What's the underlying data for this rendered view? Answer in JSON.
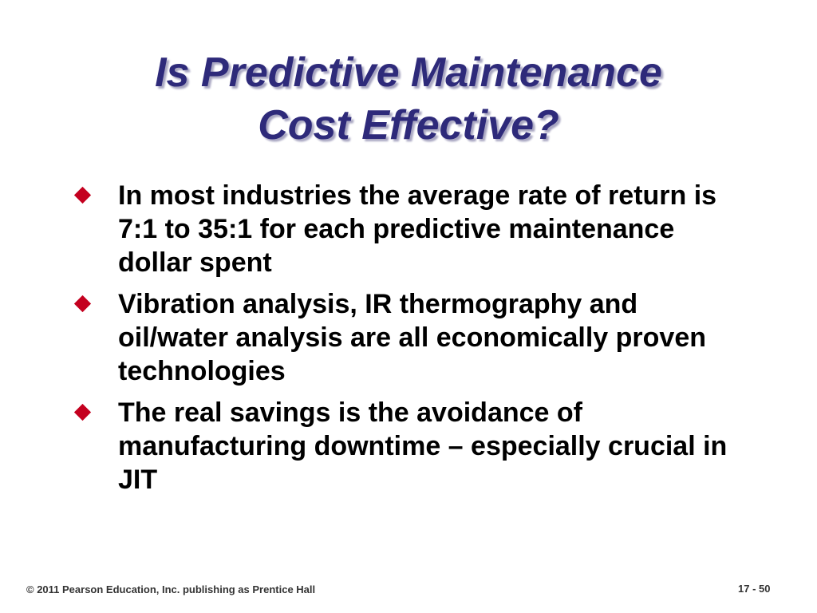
{
  "slide": {
    "title_lines": [
      "Is Predictive Maintenance",
      "Cost Effective?"
    ],
    "bullets": [
      {
        "text": "In most industries the average rate of return is 7:1 to 35:1 for each predictive maintenance dollar spent",
        "icon": "diamond-bullet-icon"
      },
      {
        "text": "Vibration analysis, IR thermography and oil/water analysis are all economically proven technologies",
        "icon": "diamond-bullet-icon"
      },
      {
        "text": "The real savings is the avoidance of manufacturing downtime – especially crucial in JIT",
        "icon": "diamond-bullet-icon"
      }
    ],
    "footer": {
      "copyright": "© 2011 Pearson Education, Inc. publishing as Prentice Hall",
      "page_number": "17 - 50"
    }
  },
  "colors": {
    "title": "#2e2a7a",
    "bullet": "#c4001f",
    "text": "#000000"
  }
}
